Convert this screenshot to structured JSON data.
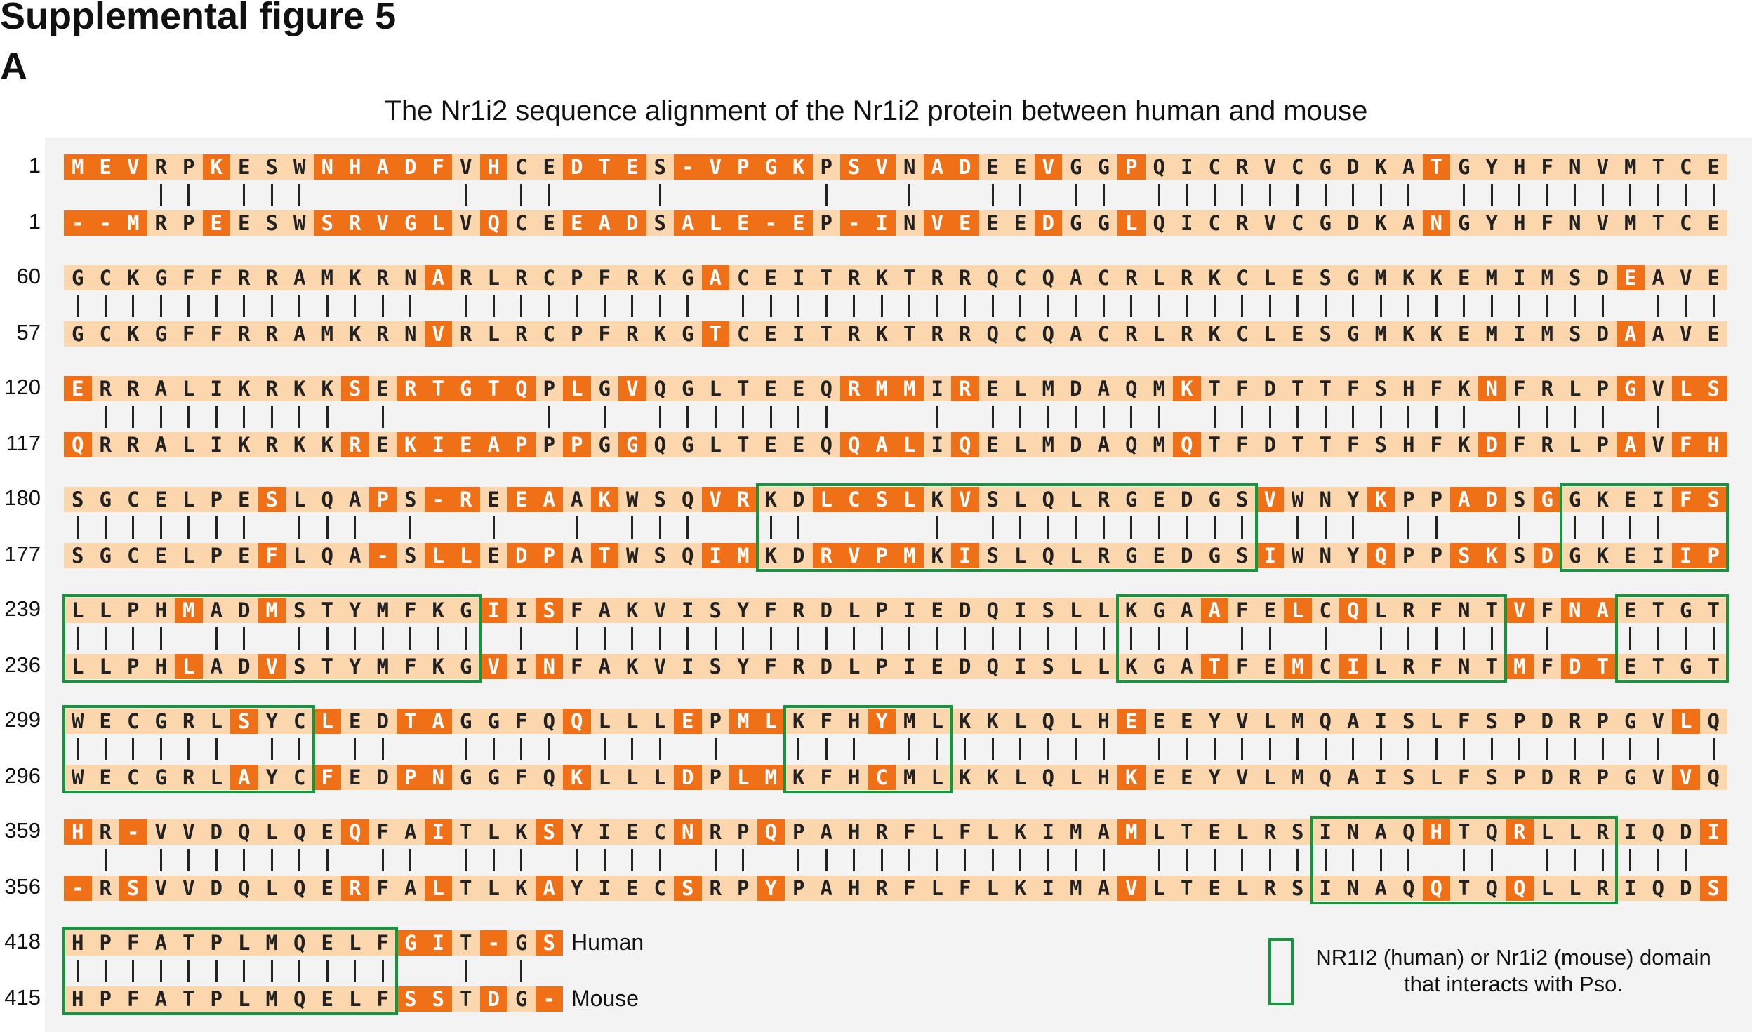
{
  "figure_title": "Supplemental figure 5",
  "panel_label": "A",
  "alignment_title": "The Nr1i2 sequence alignment of the Nr1i2 protein between human and mouse",
  "species_labels": {
    "human": "Human",
    "mouse": "Mouse"
  },
  "legend": {
    "line1": "NR1I2 (human) or Nr1i2 (mouse) domain",
    "line2": "that interacts with Pso."
  },
  "colors": {
    "mismatch": "#f07018",
    "match": "#fcd7ae",
    "domain_box": "#14963c",
    "background": "#f3f3f3"
  },
  "rows": [
    {
      "human_start": "1",
      "human": "MEVRPKESWNHADFVHCEDTES-VPGKPSVNADEEVGGPQICRVCGDKATGYHFNVMTCE",
      "mouse_start": "1",
      "mouse": "--MRPEESWSRVGLVQCEEADSALE-EP-INVEEEDGGLQICRVCGDKANGYHFNVMTCE",
      "domains": []
    },
    {
      "human_start": "60",
      "human": "GCKGFFRRAMKRNARLRCPFRKGACEITRKTRRQCQACRLRKCLESGMKKEMIMSDEAVE",
      "mouse_start": "57",
      "mouse": "GCKGFFRRAMKRNVRLRCPFRKGTCEITRKTRRQCQACRLRKCLESGMKKEMIMSDAAVE",
      "domains": []
    },
    {
      "human_start": "120",
      "human": "ERRALIKRKKSERTGTQPLGVQGLTEEQRMMIRELMDAQMKTFDTTFSHFKNFRLPGVLS",
      "mouse_start": "117",
      "mouse": "QRRALIKRKKREKIEAPPPGGQGLTEEQQALIQELMDAQMQTFDTTFSHFKDFRLPAVFH",
      "domains": []
    },
    {
      "human_start": "180",
      "human": "SGCELPESLQAPS-REEAAKWSQVRKDLCSLKVSLQLRGEDGSVWNYKPPADSGGKEIFS",
      "mouse_start": "177",
      "mouse": "SGCELPEFLQA-SLLEDPATWSQIMKDRVPMKISLQLRGEDGSIWNYQPPSKSDGKEIIP",
      "domains": [
        [
          26,
          43
        ],
        [
          55,
          60
        ]
      ]
    },
    {
      "human_start": "239",
      "human": "LLPHMADMSTYMFKGIISFAKVISYFRDLPIEDQISLLKGAAFELCQLRFNTVFNAETGT",
      "mouse_start": "236",
      "mouse": "LLPHLADVSTYMFKGVINFAKVISYFRDLPIEDQISLLKGATFEMCILRFNTMFDTETGT",
      "domains": [
        [
          1,
          15
        ],
        [
          39,
          52
        ],
        [
          57,
          60
        ]
      ]
    },
    {
      "human_start": "299",
      "human": "WECGRLSYCLEDTAGGFQQLLLEPMLKFHYMLKKLQLHEEEYVLMQAISLFSPDRPGVLQ",
      "mouse_start": "296",
      "mouse": "WECGRLAYCFEDPNGGFQKLLLDPLMKFHCMLKKLQLHKEEYVLMQAISLFSPDRPGVVQ",
      "domains": [
        [
          1,
          9
        ],
        [
          27,
          32
        ]
      ]
    },
    {
      "human_start": "359",
      "human": "HR-VVDQLQEQFAITLKSYIECNRPQPAHRFLFLKIMAMLTELRSINAQHTQRLLRIQDI",
      "mouse_start": "356",
      "mouse": "-RSVVDQLQERFALTLKAYIECSRPYPAHRFLFLKIMAVLTELRSINAQQTQQLLRIQDS",
      "domains": [
        [
          46,
          56
        ]
      ]
    },
    {
      "human_start": "418",
      "human": "HPFATPLMQELFGIT-GS",
      "mouse_start": "415",
      "mouse": "HPFATPLMQELFSSTDG-",
      "domains": [
        [
          1,
          12
        ]
      ]
    }
  ]
}
